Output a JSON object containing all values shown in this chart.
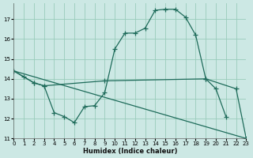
{
  "xlabel": "Humidex (Indice chaleur)",
  "bg_color": "#cce8e4",
  "grid_color": "#99ccbb",
  "line_color": "#1e6b5a",
  "xlim": [
    0,
    23
  ],
  "ylim": [
    11,
    17.8
  ],
  "yticks": [
    11,
    12,
    13,
    14,
    15,
    16,
    17
  ],
  "xticks": [
    0,
    1,
    2,
    3,
    4,
    5,
    6,
    7,
    8,
    9,
    10,
    11,
    12,
    13,
    14,
    15,
    16,
    17,
    18,
    19,
    20,
    21,
    22,
    23
  ],
  "curve1_x": [
    0,
    1,
    2,
    3,
    4,
    5,
    6,
    7,
    8,
    9,
    10,
    11,
    12,
    13,
    14,
    15,
    16,
    17,
    18,
    19,
    20,
    21
  ],
  "curve1_y": [
    14.4,
    14.1,
    13.8,
    13.65,
    12.3,
    12.1,
    11.8,
    12.6,
    12.65,
    13.3,
    15.5,
    16.3,
    16.3,
    16.55,
    17.45,
    17.5,
    17.5,
    17.1,
    16.2,
    14.0,
    13.5,
    12.1
  ],
  "curve2_x": [
    0,
    2,
    3,
    9,
    19,
    22,
    23
  ],
  "curve2_y": [
    14.4,
    13.8,
    13.65,
    13.9,
    14.0,
    13.5,
    11.0
  ],
  "line3_x": [
    0,
    23
  ],
  "line3_y": [
    14.4,
    11.0
  ]
}
